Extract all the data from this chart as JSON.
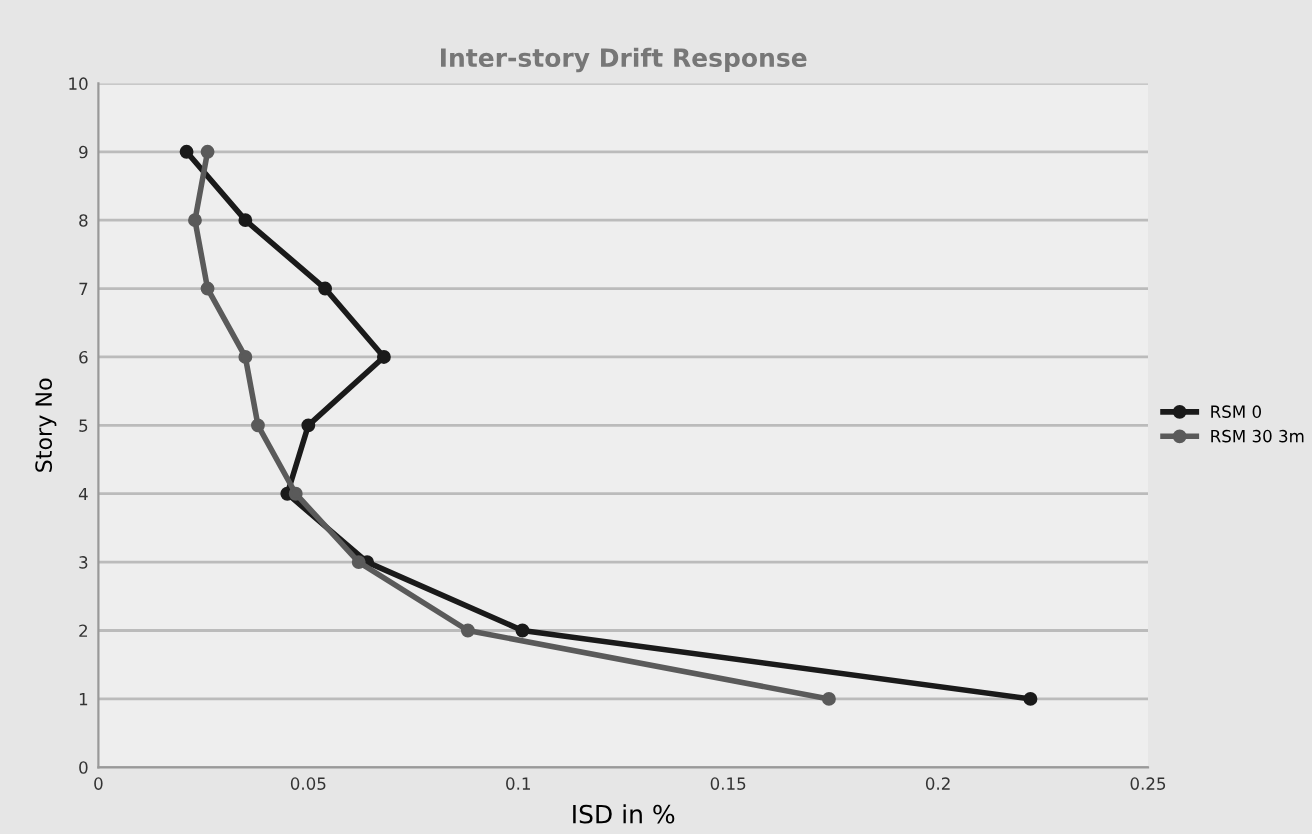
{
  "chart_data": {
    "type": "line",
    "title": "Inter-story Drift Response",
    "xlabel": "ISD in %",
    "ylabel": "Story No",
    "series": [
      {
        "name": "RSM 0",
        "color": "#1a1a1a",
        "x": [
          0.021,
          0.035,
          0.054,
          0.068,
          0.05,
          0.045,
          0.064,
          0.101,
          0.222
        ],
        "values": [
          9,
          8,
          7,
          6,
          5,
          4,
          3,
          2,
          1
        ]
      },
      {
        "name": "RSM 30 3m",
        "color": "#5a5a5a",
        "x": [
          0.026,
          0.023,
          0.026,
          0.035,
          0.038,
          0.047,
          0.062,
          0.088,
          0.174
        ],
        "values": [
          9,
          8,
          7,
          6,
          5,
          4,
          3,
          2,
          1
        ]
      }
    ],
    "xlim": [
      0,
      0.25
    ],
    "xticks": [
      0,
      0.05,
      0.1,
      0.15,
      0.2,
      0.25
    ],
    "ylim": [
      0,
      10
    ],
    "yticks": [
      0,
      1,
      2,
      3,
      4,
      5,
      6,
      7,
      8,
      9,
      10
    ],
    "grid": "y",
    "legend": "right",
    "marker": "circle",
    "line_style": "solid"
  }
}
